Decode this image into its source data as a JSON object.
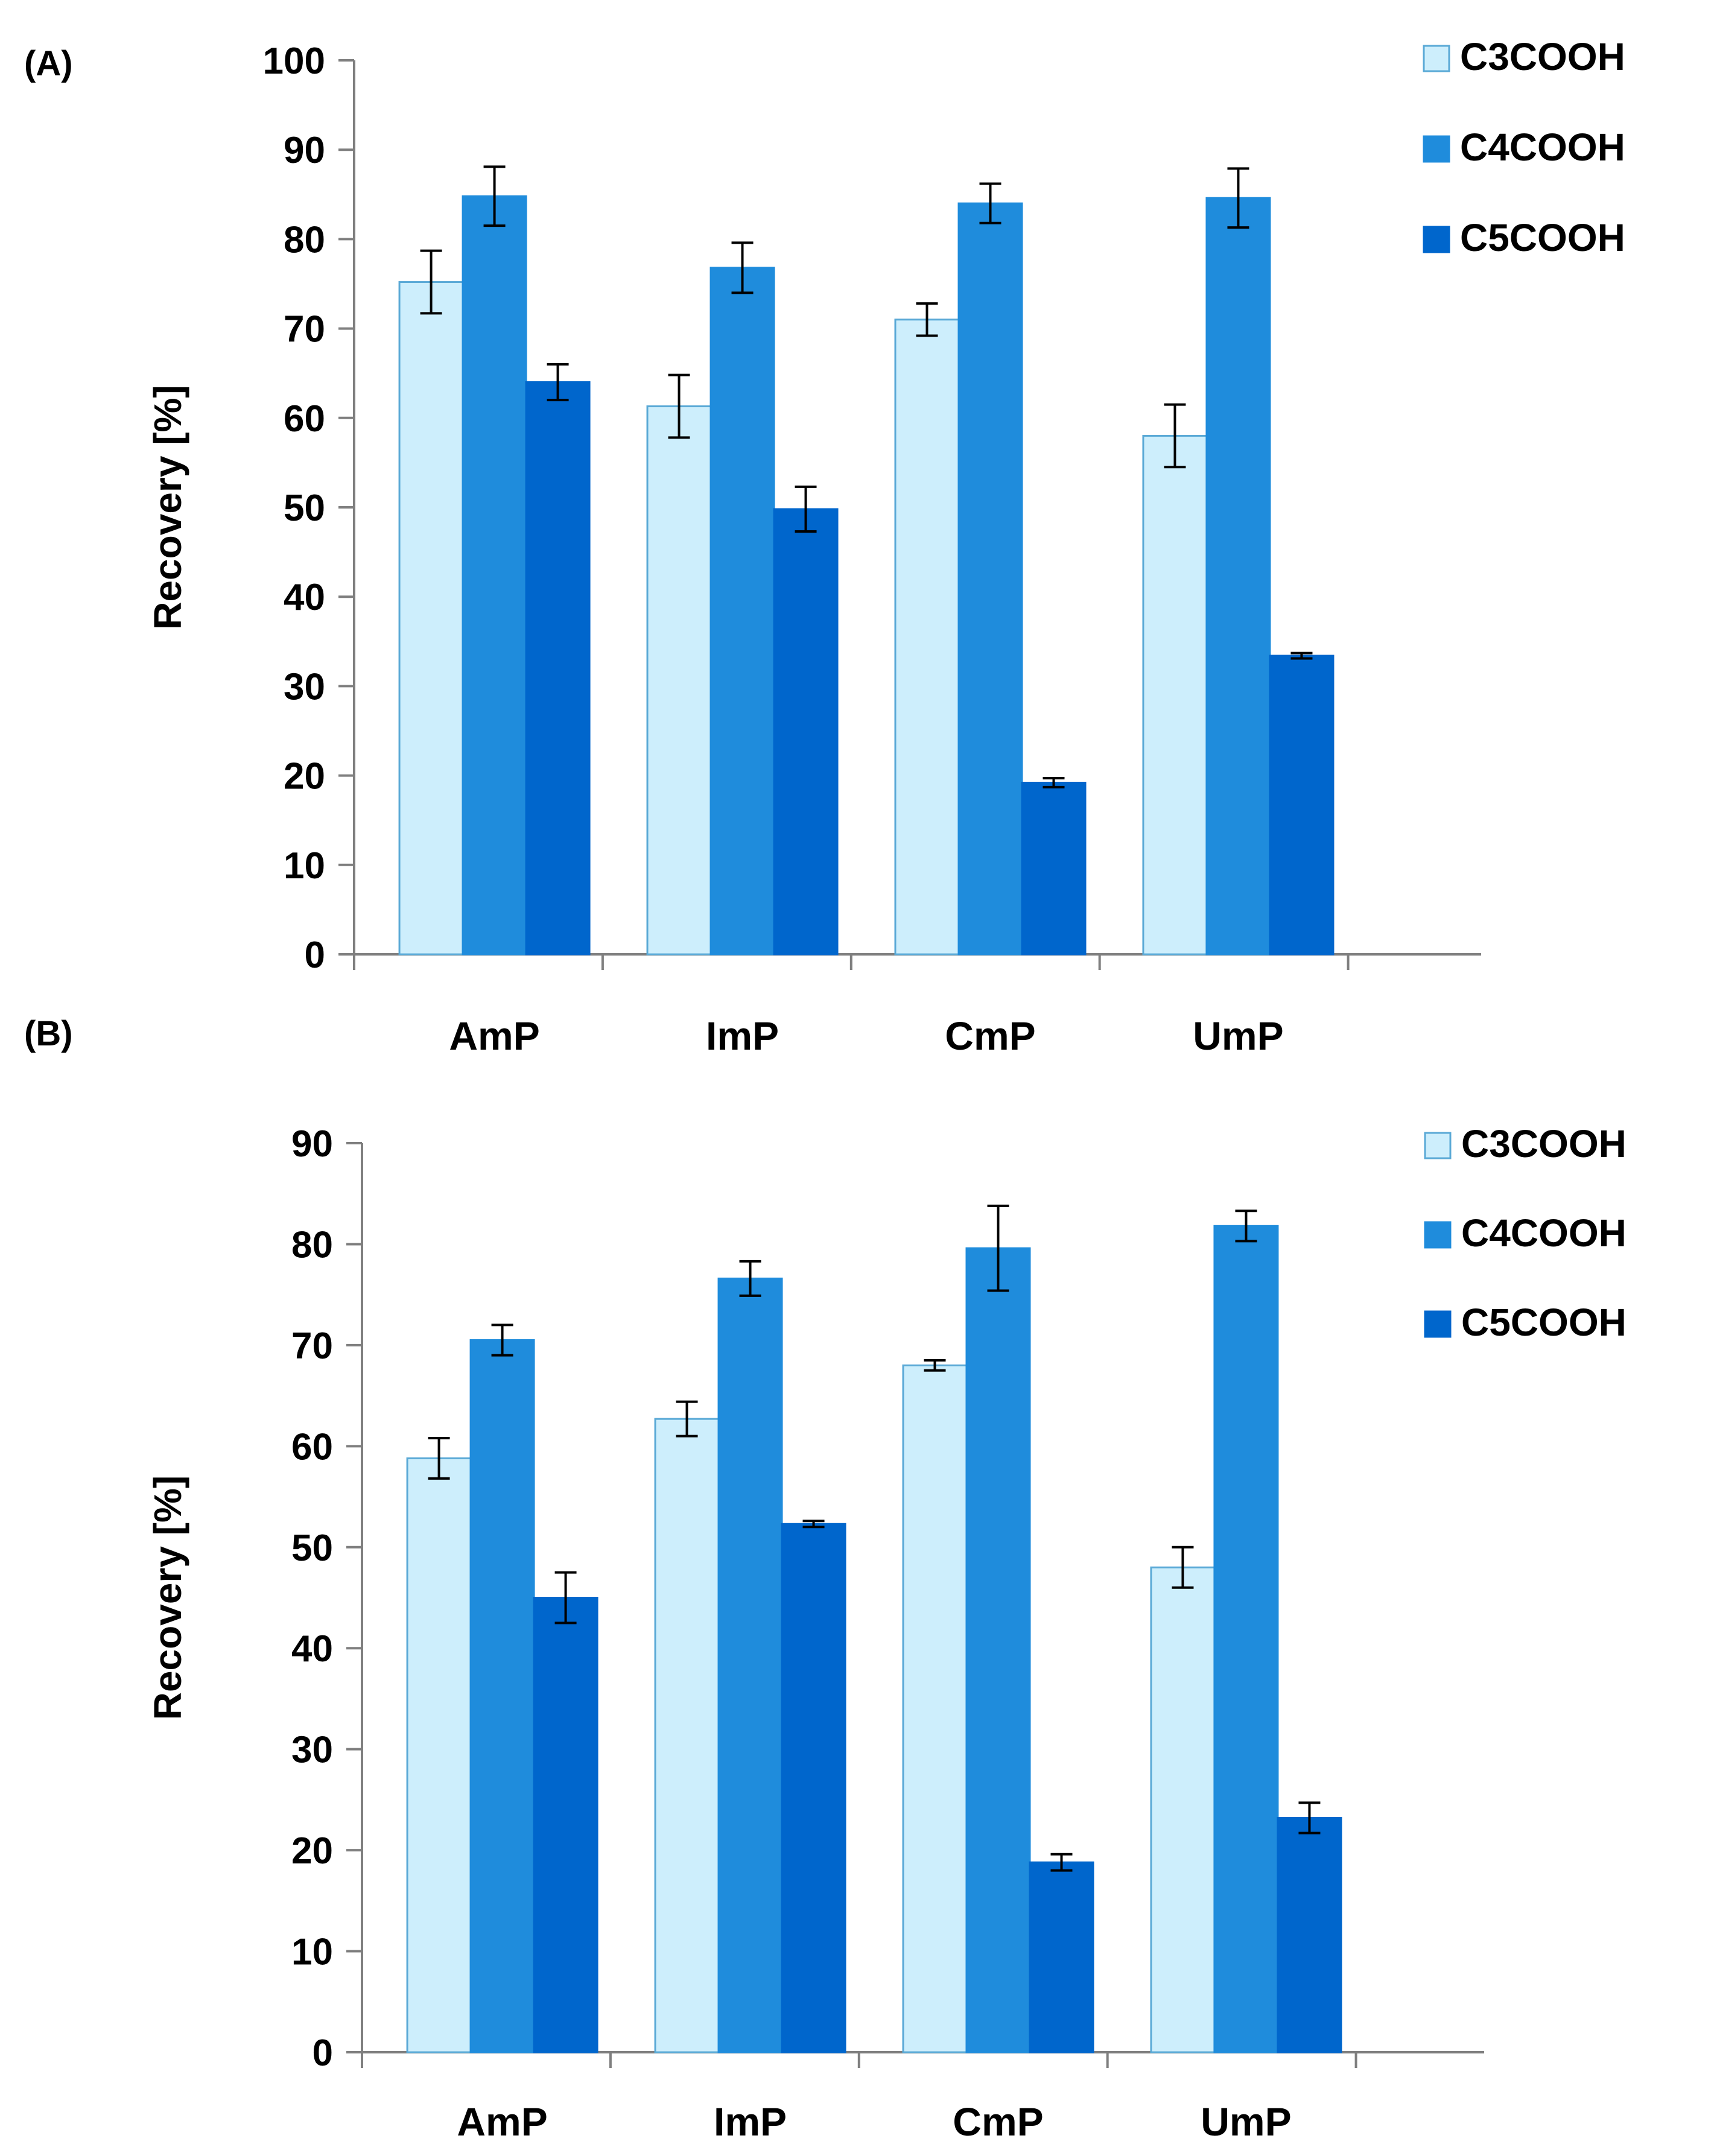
{
  "colors": {
    "c3": "#cdeefc",
    "c3_stroke": "#5aa9d6",
    "c4": "#1f8cdc",
    "c5": "#0066cc",
    "axis": "#7f7f7f",
    "error_bar": "#000000"
  },
  "chart_data": [
    {
      "type": "bar",
      "panel_label": "(A)",
      "title": "",
      "xlabel": "",
      "ylabel": "Recovery [%]",
      "ylim": [
        0,
        100
      ],
      "yticks": [
        0,
        10,
        20,
        30,
        40,
        50,
        60,
        70,
        80,
        90,
        100
      ],
      "grid": false,
      "legend_position": "top-right",
      "categories": [
        "AmP",
        "ImP",
        "CmP",
        "UmP"
      ],
      "series": [
        {
          "name": "C3COOH",
          "values": [
            75.2,
            61.3,
            71.0,
            58.0
          ],
          "errors": [
            3.5,
            3.5,
            1.8,
            3.5
          ]
        },
        {
          "name": "C4COOH",
          "values": [
            84.8,
            76.8,
            84.0,
            84.6
          ],
          "errors": [
            3.3,
            2.8,
            2.2,
            3.3
          ]
        },
        {
          "name": "C5COOH",
          "values": [
            64.0,
            49.8,
            19.2,
            33.4
          ],
          "errors": [
            2.0,
            2.5,
            0.5,
            0.3
          ]
        }
      ]
    },
    {
      "type": "bar",
      "panel_label": "(B)",
      "title": "",
      "xlabel": "",
      "ylabel": "Recovery [%]",
      "ylim": [
        0,
        90
      ],
      "yticks": [
        0,
        10,
        20,
        30,
        40,
        50,
        60,
        70,
        80,
        90
      ],
      "grid": false,
      "legend_position": "top-right",
      "categories": [
        "AmP",
        "ImP",
        "CmP",
        "UmP"
      ],
      "series": [
        {
          "name": "C3COOH",
          "values": [
            58.8,
            62.7,
            68.0,
            48.0
          ],
          "errors": [
            2.0,
            1.7,
            0.5,
            2.0
          ]
        },
        {
          "name": "C4COOH",
          "values": [
            70.5,
            76.6,
            79.6,
            81.8
          ],
          "errors": [
            1.5,
            1.7,
            4.2,
            1.5
          ]
        },
        {
          "name": "C5COOH",
          "values": [
            45.0,
            52.3,
            18.8,
            23.2
          ],
          "errors": [
            2.5,
            0.3,
            0.8,
            1.5
          ]
        }
      ]
    }
  ]
}
